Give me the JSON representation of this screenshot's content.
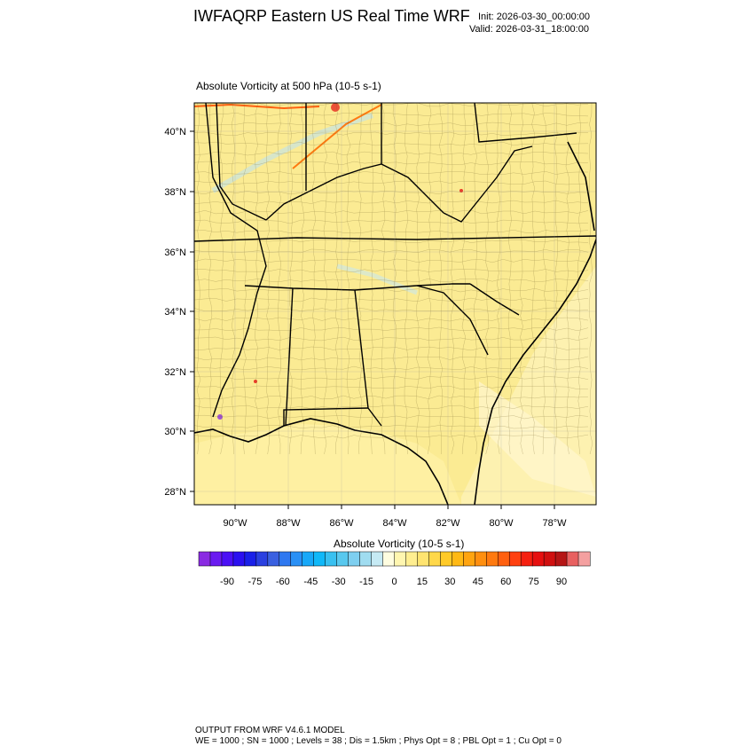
{
  "header": {
    "title": "IWFAQRP Eastern US Real Time WRF",
    "init": "Init: 2026-03-30_00:00:00",
    "valid": "Valid: 2026-03-31_18:00:00"
  },
  "plot": {
    "field_title": "Absolute Vorticity at 500 hPa   (10-5 s-1)",
    "lat_labels": [
      "40°N",
      "38°N",
      "36°N",
      "34°N",
      "32°N",
      "30°N",
      "28°N"
    ],
    "lon_labels": [
      "90°W",
      "88°W",
      "86°W",
      "84°W",
      "82°W",
      "80°W",
      "78°W"
    ],
    "background_color": "#fbeb93"
  },
  "colorbar": {
    "title": "Absolute Vorticity  (10-5 s-1)",
    "labels": [
      "-90",
      "-75",
      "-60",
      "-45",
      "-30",
      "-15",
      "0",
      "15",
      "30",
      "45",
      "60",
      "75",
      "90"
    ],
    "colors": [
      "#8a2be2",
      "#6a1bf0",
      "#4b10f5",
      "#2b10f0",
      "#1a20e8",
      "#2a40e0",
      "#3a60e0",
      "#2f78f0",
      "#2a90f5",
      "#18a8f8",
      "#10b8f8",
      "#38c0f0",
      "#58c8ee",
      "#7ecff0",
      "#a0dcf0",
      "#c6eaf4",
      "#fffde0",
      "#fff6b0",
      "#ffee90",
      "#ffe470",
      "#ffd84a",
      "#ffca28",
      "#ffb915",
      "#ffa410",
      "#ff8f10",
      "#ff7a10",
      "#ff6010",
      "#ff4010",
      "#f52010",
      "#e61010",
      "#d01010",
      "#b51515",
      "#e86060",
      "#f4a0a0"
    ]
  },
  "footer": {
    "line1": "OUTPUT FROM WRF V4.6.1 MODEL",
    "line2": "WE = 1000 ; SN = 1000 ; Levels = 38 ; Dis = 1.5km ; Phys Opt = 8 ; PBL Opt = 1 ; Cu Opt = 0"
  }
}
